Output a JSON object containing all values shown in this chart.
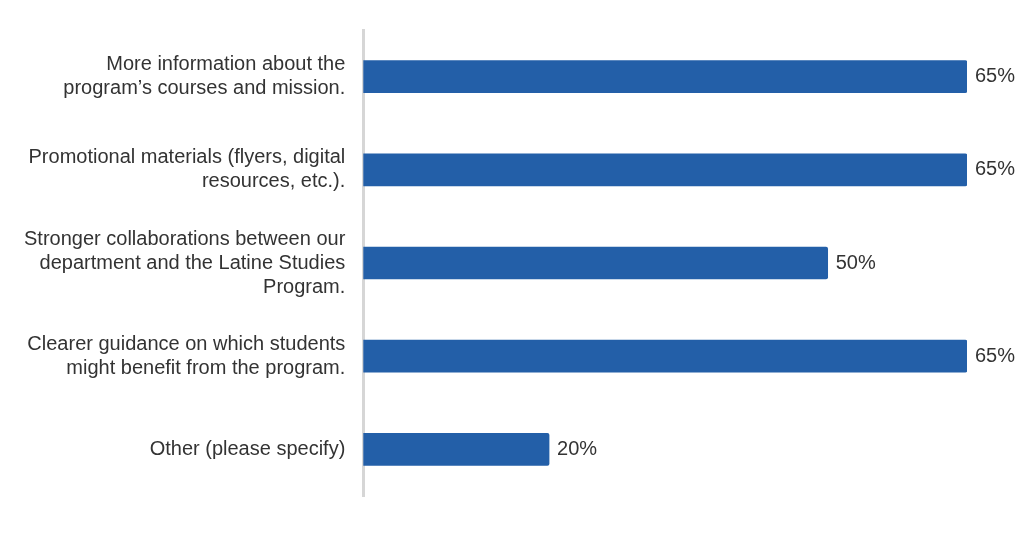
{
  "chart_data": {
    "type": "bar",
    "orientation": "horizontal",
    "categories": [
      "More information about the program’s courses and mission.",
      "Promotional materials (flyers, digital resources, etc.).",
      "Stronger collaborations between our department and the Latine Studies Program.",
      "Clearer guidance on which students might benefit from the program.",
      "Other (please specify)"
    ],
    "values": [
      65,
      65,
      50,
      65,
      20
    ],
    "value_labels": [
      "65%",
      "65%",
      "50%",
      "65%",
      "20%"
    ],
    "color": "#235fa8",
    "legend": false
  }
}
